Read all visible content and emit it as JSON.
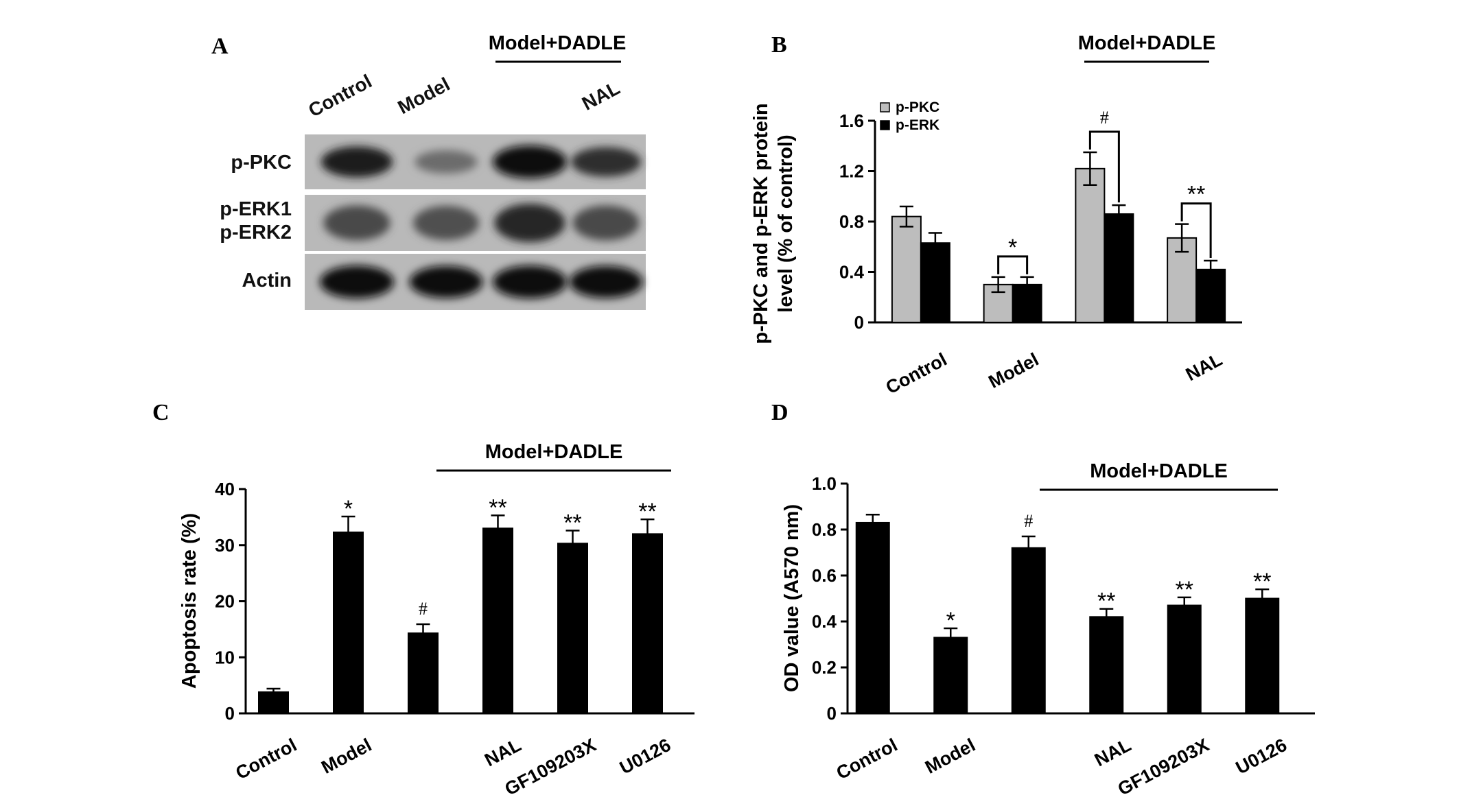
{
  "panels": {
    "a": {
      "letter": "A"
    },
    "b": {
      "letter": "B"
    },
    "c": {
      "letter": "C"
    },
    "d": {
      "letter": "D"
    }
  },
  "blot": {
    "group_label": "Model+DADLE",
    "lanes": [
      "Control",
      "Model",
      "",
      "NAL"
    ],
    "rows": [
      {
        "label": "p-PKC",
        "intensity": [
          0.85,
          0.3,
          1.0,
          0.75
        ]
      },
      {
        "label": "p-ERK1\np-ERK2",
        "intensity": [
          0.55,
          0.5,
          0.8,
          0.55
        ]
      },
      {
        "label": "Actin",
        "intensity": [
          1.0,
          0.95,
          1.0,
          0.95
        ]
      }
    ]
  },
  "chart_data": [
    {
      "panel": "B",
      "type": "bar",
      "title": "",
      "xlabel": "",
      "ylabel": "p-PKC and p-ERK protein level (% of control)",
      "ylim": [
        0,
        1.6
      ],
      "yticks": [
        "0",
        "0.4",
        "0.8",
        "1.2",
        "1.6"
      ],
      "categories": [
        "Control",
        "Model",
        "",
        "NAL"
      ],
      "group_label": "Model+DADLE",
      "legend": "top-left",
      "series": [
        {
          "name": "p-PKC",
          "color": "#bdbdbd",
          "values": [
            0.84,
            0.3,
            1.22,
            0.67
          ],
          "errors": [
            0.08,
            0.06,
            0.13,
            0.11
          ]
        },
        {
          "name": "p-ERK",
          "color": "#000000",
          "values": [
            0.63,
            0.3,
            0.86,
            0.42
          ],
          "errors": [
            0.08,
            0.06,
            0.07,
            0.07
          ]
        }
      ],
      "annotations": [
        {
          "category": 1,
          "text": "*",
          "bracket": true
        },
        {
          "category": 2,
          "text": "#",
          "bracket": true
        },
        {
          "category": 3,
          "text": "**",
          "bracket": true
        }
      ]
    },
    {
      "panel": "C",
      "type": "bar",
      "title": "",
      "xlabel": "",
      "ylabel": "Apoptosis rate (%)",
      "ylim": [
        0,
        40
      ],
      "yticks": [
        "0",
        "10",
        "20",
        "30",
        "40"
      ],
      "categories": [
        "Control",
        "Model",
        "",
        "NAL",
        "GF109203X",
        "U0126"
      ],
      "group_label": "Model+DADLE",
      "series": [
        {
          "values": [
            3.8,
            32.3,
            14.3,
            33.0,
            30.3,
            32.0
          ],
          "errors": [
            0.6,
            2.8,
            1.6,
            2.3,
            2.3,
            2.6
          ],
          "color": "#000000"
        }
      ],
      "annotations": [
        "",
        "*",
        "#",
        "**",
        "**",
        "**"
      ]
    },
    {
      "panel": "D",
      "type": "bar",
      "title": "",
      "xlabel": "",
      "ylabel": "OD value (A570 nm)",
      "ylim": [
        0,
        1.0
      ],
      "yticks": [
        "0",
        "0.2",
        "0.4",
        "0.6",
        "0.8",
        "1.0"
      ],
      "categories": [
        "Control",
        "Model",
        "",
        "NAL",
        "GF109203X",
        "U0126"
      ],
      "group_label": "Model+DADLE",
      "series": [
        {
          "values": [
            0.83,
            0.33,
            0.72,
            0.42,
            0.47,
            0.5
          ],
          "errors": [
            0.035,
            0.04,
            0.05,
            0.035,
            0.035,
            0.04
          ],
          "color": "#000000"
        }
      ],
      "annotations": [
        "",
        "*",
        "#",
        "**",
        "**",
        "**"
      ]
    }
  ]
}
